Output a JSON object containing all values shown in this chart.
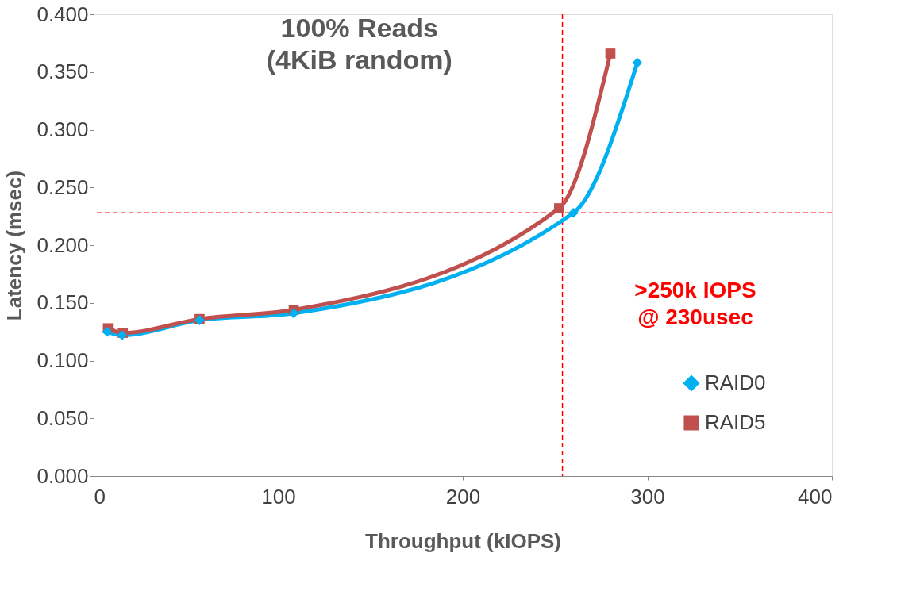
{
  "chart_data": {
    "type": "line",
    "title": "100% Reads\n(4KiB random)",
    "xlabel": "Throughput (kIOPS)",
    "ylabel": "Latency (msec)",
    "series": [
      {
        "name": "RAID0",
        "color": "#00b0f0",
        "marker": "diamond",
        "x": [
          7.3,
          15.4,
          57.4,
          108.4,
          260,
          294.6
        ],
        "values": [
          0.125,
          0.122,
          0.135,
          0.141,
          0.228,
          0.358
        ]
      },
      {
        "name": "RAID5",
        "color": "#c0504d",
        "marker": "square",
        "x": [
          7.7,
          15.8,
          57.4,
          108.4,
          252.2,
          280
        ],
        "values": [
          0.128,
          0.124,
          0.136,
          0.144,
          0.232,
          0.366
        ]
      }
    ],
    "xlim": [
      0,
      400
    ],
    "xticks": [
      0,
      100,
      200,
      300,
      400
    ],
    "ylim": [
      0,
      0.4
    ],
    "yticks": [
      {
        "value": 0,
        "label": "0.000"
      },
      {
        "value": 0.05,
        "label": "0.050"
      },
      {
        "value": 0.1,
        "label": "0.100"
      },
      {
        "value": 0.15,
        "label": "0.150"
      },
      {
        "value": 0.2,
        "label": "0.200"
      },
      {
        "value": 0.25,
        "label": "0.250"
      },
      {
        "value": 0.3,
        "label": "0.300"
      },
      {
        "value": 0.35,
        "label": "0.350"
      },
      {
        "value": 0.4,
        "label": "0.400"
      }
    ],
    "ref_lines": [
      {
        "axis": "y",
        "value": 0.228,
        "color": "#ff0000",
        "line_style": "dashed"
      },
      {
        "axis": "x",
        "value": 254,
        "color": "#ff0000",
        "line_style": "dashed"
      }
    ],
    "annotations": [
      ">250k IOPS\n@ 230usec"
    ],
    "legend": "bottom right",
    "grid": false,
    "line_style": "solid"
  }
}
